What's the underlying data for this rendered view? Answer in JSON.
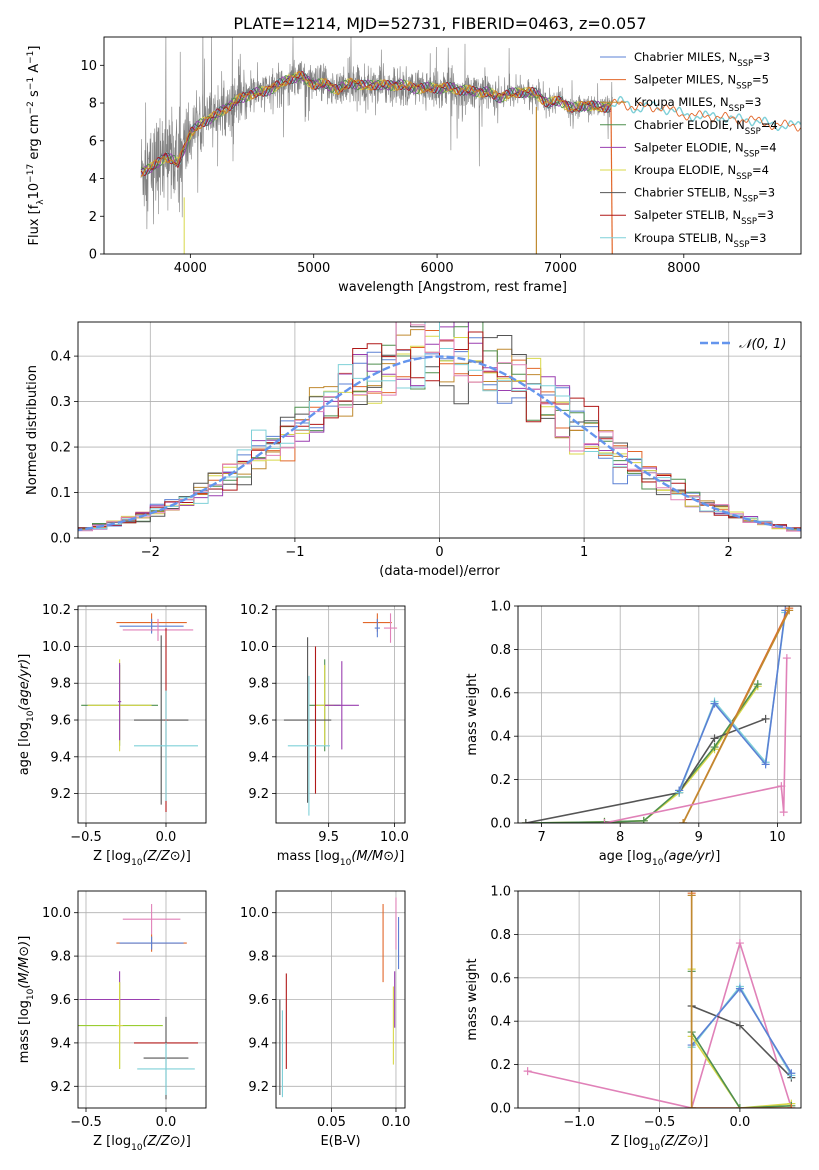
{
  "figure_title": "PLATE=1214, MJD=52731, FIBERID=0463, z=0.057",
  "colors": {
    "chabrier_miles": "#5b80d4",
    "salpeter_miles": "#e2672a",
    "kroupa_miles": "#c08a30",
    "chabrier_elodie": "#4f8f4f",
    "salpeter_elodie": "#9a3fb0",
    "kroupa_elodie": "#d8d84a",
    "chabrier_stelib": "#555555",
    "salpeter_stelib": "#b01818",
    "kroupa_stelib": "#7fd0d8",
    "pink": "#e081b8",
    "lime": "#9acd32",
    "gaussian": "#6495ed",
    "spectrum": "#808080"
  },
  "chart_data": [
    {
      "id": "spectrum",
      "type": "line",
      "title": "PLATE=1214, MJD=52731, FIBERID=0463, z=0.057",
      "xlabel": "wavelength [Angstrom, rest frame]",
      "ylabel": "Flux [f_λ10^-17 erg cm^-2 s^-1 A^-1]",
      "xlim": [
        3300,
        8950
      ],
      "ylim": [
        0,
        11.5
      ],
      "xticks": [
        4000,
        5000,
        6000,
        7000,
        8000
      ],
      "yticks": [
        0,
        2,
        4,
        6,
        8,
        10
      ],
      "legend_position": "top-right",
      "legend": [
        {
          "key": "chabrier_miles",
          "label": "Chabrier MILES, N",
          "sub": "SSP",
          "tail": "=3"
        },
        {
          "key": "salpeter_miles",
          "label": "Salpeter MILES, N",
          "sub": "SSP",
          "tail": "=5"
        },
        {
          "key": "kroupa_miles",
          "label": "Kroupa MILES, N",
          "sub": "SSP",
          "tail": "=3"
        },
        {
          "key": "chabrier_elodie",
          "label": "Chabrier ELODIE, N",
          "sub": "SSP",
          "tail": "=4"
        },
        {
          "key": "salpeter_elodie",
          "label": "Salpeter ELODIE, N",
          "sub": "SSP",
          "tail": "=4"
        },
        {
          "key": "kroupa_elodie",
          "label": "Kroupa ELODIE, N",
          "sub": "SSP",
          "tail": "=4"
        },
        {
          "key": "chabrier_stelib",
          "label": "Chabrier STELIB, N",
          "sub": "SSP",
          "tail": "=3"
        },
        {
          "key": "salpeter_stelib",
          "label": "Salpeter STELIB, N",
          "sub": "SSP",
          "tail": "=3"
        },
        {
          "key": "kroupa_stelib",
          "label": "Kroupa STELIB, N",
          "sub": "SSP",
          "tail": "=3"
        }
      ],
      "data_range": [
        3600,
        7420
      ],
      "model_points": [
        [
          3600,
          4.4
        ],
        [
          3700,
          4.6
        ],
        [
          3800,
          5.2
        ],
        [
          3900,
          4.8
        ],
        [
          4000,
          6.4
        ],
        [
          4100,
          7.0
        ],
        [
          4200,
          7.3
        ],
        [
          4300,
          7.8
        ],
        [
          4400,
          8.2
        ],
        [
          4500,
          8.5
        ],
        [
          4600,
          8.6
        ],
        [
          4700,
          8.9
        ],
        [
          4800,
          9.3
        ],
        [
          4900,
          9.4
        ],
        [
          5000,
          9.0
        ],
        [
          5100,
          9.0
        ],
        [
          5200,
          8.7
        ],
        [
          5300,
          9.1
        ],
        [
          5400,
          8.9
        ],
        [
          5500,
          9.0
        ],
        [
          5600,
          8.9
        ],
        [
          5700,
          9.0
        ],
        [
          5800,
          8.8
        ],
        [
          5900,
          8.8
        ],
        [
          6000,
          8.8
        ],
        [
          6100,
          8.8
        ],
        [
          6200,
          8.7
        ],
        [
          6300,
          8.6
        ],
        [
          6400,
          8.6
        ],
        [
          6500,
          8.3
        ],
        [
          6600,
          8.5
        ],
        [
          6700,
          8.6
        ],
        [
          6800,
          8.5
        ],
        [
          6900,
          8.0
        ],
        [
          7000,
          8.1
        ],
        [
          7100,
          7.7
        ],
        [
          7200,
          7.9
        ],
        [
          7300,
          7.8
        ],
        [
          7400,
          7.8
        ],
        [
          7500,
          8.1
        ],
        [
          7600,
          7.7
        ],
        [
          7700,
          7.8
        ],
        [
          7800,
          7.8
        ],
        [
          7900,
          7.6
        ],
        [
          8000,
          7.4
        ],
        [
          8100,
          7.3
        ],
        [
          8200,
          7.3
        ],
        [
          8300,
          7.3
        ],
        [
          8400,
          7.1
        ],
        [
          8500,
          7.2
        ],
        [
          8600,
          7.0
        ],
        [
          8700,
          6.9
        ],
        [
          8800,
          6.8
        ],
        [
          8900,
          6.8
        ]
      ]
    },
    {
      "id": "residuals",
      "type": "histogram",
      "xlabel": "(data-model)/error",
      "ylabel": "Normed distribution",
      "xlim": [
        -2.5,
        2.5
      ],
      "ylim": [
        0,
        0.475
      ],
      "xticks": [
        -2,
        -1,
        0,
        1,
        2
      ],
      "yticks": [
        0,
        0.1,
        0.2,
        0.3,
        0.4
      ],
      "legend_position": "top-right",
      "gaussian_label": "𝒩(0, 1)",
      "bin_width": 0.1
    },
    {
      "id": "age_vs_Z",
      "type": "errorbar",
      "xlabel": "Z [log10(Z/Z⊙)]",
      "ylabel": "age  [log10(age/yr)]",
      "xlim": [
        -0.55,
        0.25
      ],
      "ylim": [
        9.04,
        10.22
      ],
      "xticks": [
        -0.5,
        0.0
      ],
      "yticks": [
        9.2,
        9.4,
        9.6,
        9.8,
        10.0,
        10.2
      ],
      "bars": [
        {
          "c": "salpeter_miles",
          "x": -0.09,
          "y": 10.13,
          "xe": 0.22,
          "ye": 0.05
        },
        {
          "c": "chabrier_miles",
          "x": -0.09,
          "y": 10.11,
          "xe": 0.2,
          "ye": 0.04
        },
        {
          "c": "pink",
          "x": -0.05,
          "y": 10.09,
          "xe": 0.22,
          "ye": 0.06
        },
        {
          "c": "chabrier_elodie",
          "x": -0.29,
          "y": 9.68,
          "xe": 0.24,
          "ye": 0.22
        },
        {
          "c": "kroupa_elodie",
          "x": -0.29,
          "y": 9.68,
          "xe": 0.2,
          "ye": 0.25
        },
        {
          "c": "salpeter_elodie",
          "x": -0.29,
          "y": 9.7,
          "xe": 0.01,
          "ye": 0.21
        },
        {
          "c": "chabrier_stelib",
          "x": -0.03,
          "y": 9.6,
          "xe": 0.17,
          "ye": 0.46
        },
        {
          "c": "salpeter_stelib",
          "x": 0.0,
          "y": 9.6,
          "xe": 0.01,
          "ye": 0.5
        },
        {
          "c": "kroupa_stelib",
          "x": 0.0,
          "y": 9.46,
          "xe": 0.2,
          "ye": 0.3
        }
      ]
    },
    {
      "id": "age_vs_mass",
      "type": "errorbar",
      "xlabel": "mass [log10(M/M⊙)]",
      "ylabel": "",
      "xlim": [
        9.1,
        10.08
      ],
      "ylim": [
        9.04,
        10.22
      ],
      "xticks": [
        9.5,
        10.0
      ],
      "yticks": [
        9.2,
        9.4,
        9.6,
        9.8,
        10.0,
        10.2
      ],
      "bars": [
        {
          "c": "salpeter_miles",
          "x": 9.87,
          "y": 10.13,
          "xe": 0.11,
          "ye": 0.05
        },
        {
          "c": "pink",
          "x": 9.97,
          "y": 10.1,
          "xe": 0.05,
          "ye": 0.08
        },
        {
          "c": "chabrier_miles",
          "x": 9.87,
          "y": 10.1,
          "xe": 0.02,
          "ye": 0.05
        },
        {
          "c": "chabrier_elodie",
          "x": 9.47,
          "y": 9.68,
          "xe": 0.12,
          "ye": 0.25
        },
        {
          "c": "kroupa_elodie",
          "x": 9.47,
          "y": 9.68,
          "xe": 0.07,
          "ye": 0.22
        },
        {
          "c": "salpeter_elodie",
          "x": 9.6,
          "y": 9.68,
          "xe": 0.13,
          "ye": 0.24
        },
        {
          "c": "chabrier_stelib",
          "x": 9.34,
          "y": 9.6,
          "xe": 0.18,
          "ye": 0.45
        },
        {
          "c": "salpeter_stelib",
          "x": 9.4,
          "y": 9.6,
          "xe": 0.0,
          "ye": 0.4
        },
        {
          "c": "kroupa_stelib",
          "x": 9.35,
          "y": 9.46,
          "xe": 0.16,
          "ye": 0.38
        }
      ]
    },
    {
      "id": "weight_vs_age",
      "type": "line",
      "xlabel": "age  [log10(age/yr)]",
      "ylabel": "mass weight",
      "xlim": [
        6.7,
        10.3
      ],
      "ylim": [
        0,
        1.0
      ],
      "xticks": [
        7,
        8,
        9,
        10
      ],
      "yticks": [
        0,
        0.2,
        0.4,
        0.6,
        0.8,
        1.0
      ],
      "series": [
        {
          "c": "kroupa_elodie",
          "x": [
            6.8,
            7.8,
            8.3,
            8.75,
            9.2,
            9.75
          ],
          "y": [
            0.0,
            0.005,
            0.01,
            0.14,
            0.34,
            0.63
          ]
        },
        {
          "c": "chabrier_elodie",
          "x": [
            6.8,
            7.8,
            8.3,
            8.75,
            9.2,
            9.75
          ],
          "y": [
            0.0,
            0.005,
            0.01,
            0.15,
            0.35,
            0.64
          ]
        },
        {
          "c": "chabrier_stelib",
          "x": [
            6.8,
            8.75,
            9.2,
            9.85
          ],
          "y": [
            0.0,
            0.14,
            0.39,
            0.48
          ]
        },
        {
          "c": "kroupa_stelib",
          "x": [
            8.75,
            9.2,
            9.85,
            10.1
          ],
          "y": [
            0.14,
            0.56,
            0.28,
            0.97
          ]
        },
        {
          "c": "chabrier_miles",
          "x": [
            8.75,
            9.2,
            9.85,
            10.1
          ],
          "y": [
            0.15,
            0.55,
            0.27,
            0.98
          ]
        },
        {
          "c": "salpeter_miles",
          "x": [
            8.8,
            10.15
          ],
          "y": [
            0.0,
            0.99
          ]
        },
        {
          "c": "kroupa_miles",
          "x": [
            8.8,
            10.15
          ],
          "y": [
            0.0,
            0.98
          ]
        },
        {
          "c": "pink",
          "x": [
            7.8,
            10.05,
            10.08,
            10.12
          ],
          "y": [
            0.0,
            0.17,
            0.05,
            0.76
          ]
        }
      ]
    },
    {
      "id": "mass_vs_Z",
      "type": "errorbar",
      "xlabel": "Z [log10(Z/Z⊙)]",
      "ylabel": "mass [log10(M/M⊙)]",
      "xlim": [
        -0.55,
        0.25
      ],
      "ylim": [
        9.1,
        10.1
      ],
      "xticks": [
        -0.5,
        0.0
      ],
      "yticks": [
        9.2,
        9.4,
        9.6,
        9.8,
        10.0
      ],
      "bars": [
        {
          "c": "pink",
          "x": -0.09,
          "y": 9.97,
          "xe": 0.18,
          "ye": 0.07
        },
        {
          "c": "salpeter_miles",
          "x": -0.09,
          "y": 9.86,
          "xe": 0.22,
          "ye": 0.04
        },
        {
          "c": "chabrier_miles",
          "x": -0.09,
          "y": 9.86,
          "xe": 0.2,
          "ye": 0.03
        },
        {
          "c": "salpeter_elodie",
          "x": -0.29,
          "y": 9.6,
          "xe": 0.25,
          "ye": 0.13
        },
        {
          "c": "lime",
          "x": -0.29,
          "y": 9.48,
          "xe": 0.27,
          "ye": 0.2
        },
        {
          "c": "kroupa_elodie",
          "x": -0.29,
          "y": 9.48,
          "xe": 0.02,
          "ye": 0.2
        },
        {
          "c": "salpeter_stelib",
          "x": 0.0,
          "y": 9.4,
          "xe": 0.2,
          "ye": 0.01
        },
        {
          "c": "chabrier_stelib",
          "x": 0.0,
          "y": 9.33,
          "xe": 0.14,
          "ye": 0.19
        },
        {
          "c": "kroupa_stelib",
          "x": 0.0,
          "y": 9.28,
          "xe": 0.18,
          "ye": 0.12
        }
      ]
    },
    {
      "id": "mass_vs_EBV",
      "type": "errorbar",
      "xlabel": "E(B-V)",
      "ylabel": "",
      "xlim": [
        0.007,
        0.107
      ],
      "ylim": [
        9.1,
        10.1
      ],
      "xticks": [
        0.05,
        0.1
      ],
      "yticks": [
        9.2,
        9.4,
        9.6,
        9.8,
        10.0
      ],
      "bars": [
        {
          "c": "salpeter_miles",
          "x": 0.09,
          "y": 9.86,
          "xe": 0.0,
          "ye": 0.18
        },
        {
          "c": "pink",
          "x": 0.1,
          "y": 9.95,
          "xe": 0.0,
          "ye": 0.12
        },
        {
          "c": "chabrier_miles",
          "x": 0.102,
          "y": 9.86,
          "xe": 0.0,
          "ye": 0.12
        },
        {
          "c": "salpeter_elodie",
          "x": 0.099,
          "y": 9.6,
          "xe": 0.0,
          "ye": 0.13
        },
        {
          "c": "kroupa_elodie",
          "x": 0.098,
          "y": 9.48,
          "xe": 0.0,
          "ye": 0.18
        },
        {
          "c": "salpeter_stelib",
          "x": 0.015,
          "y": 9.5,
          "xe": 0.0,
          "ye": 0.22
        },
        {
          "c": "chabrier_stelib",
          "x": 0.01,
          "y": 9.38,
          "xe": 0.0,
          "ye": 0.22
        },
        {
          "c": "kroupa_stelib",
          "x": 0.012,
          "y": 9.35,
          "xe": 0.0,
          "ye": 0.2
        }
      ]
    },
    {
      "id": "weight_vs_Z",
      "type": "line",
      "xlabel": "Z [log10(Z/Z⊙)]",
      "ylabel": "mass weight",
      "xlim": [
        -1.38,
        0.38
      ],
      "ylim": [
        0,
        1.0
      ],
      "xticks": [
        -1.0,
        -0.5,
        0.0
      ],
      "yticks": [
        0,
        0.2,
        0.4,
        0.6,
        0.8,
        1.0
      ],
      "series": [
        {
          "c": "pink",
          "x": [
            -1.32,
            -0.3,
            0.0,
            0.32
          ],
          "y": [
            0.17,
            0.0,
            0.76,
            0.0
          ]
        },
        {
          "c": "chabrier_stelib",
          "x": [
            -0.3,
            0.0,
            0.32
          ],
          "y": [
            0.47,
            0.38,
            0.14
          ]
        },
        {
          "c": "kroupa_stelib",
          "x": [
            -0.3,
            0.0,
            0.32
          ],
          "y": [
            0.28,
            0.56,
            0.15
          ]
        },
        {
          "c": "chabrier_miles",
          "x": [
            -0.3,
            0.0,
            0.32
          ],
          "y": [
            0.29,
            0.55,
            0.16
          ]
        },
        {
          "c": "kroupa_elodie",
          "x": [
            -0.3,
            -0.3,
            0.0,
            0.32
          ],
          "y": [
            0.64,
            0.33,
            0.0,
            0.02
          ]
        },
        {
          "c": "chabrier_elodie",
          "x": [
            -0.3,
            -0.3,
            0.0,
            0.32
          ],
          "y": [
            0.63,
            0.35,
            0.0,
            0.01
          ]
        },
        {
          "c": "salpeter_miles",
          "x": [
            -0.3,
            -0.3,
            0.32
          ],
          "y": [
            0.99,
            0.0,
            0.0
          ]
        },
        {
          "c": "kroupa_miles",
          "x": [
            -0.3,
            -0.3
          ],
          "y": [
            0.98,
            0.0
          ]
        }
      ]
    }
  ]
}
